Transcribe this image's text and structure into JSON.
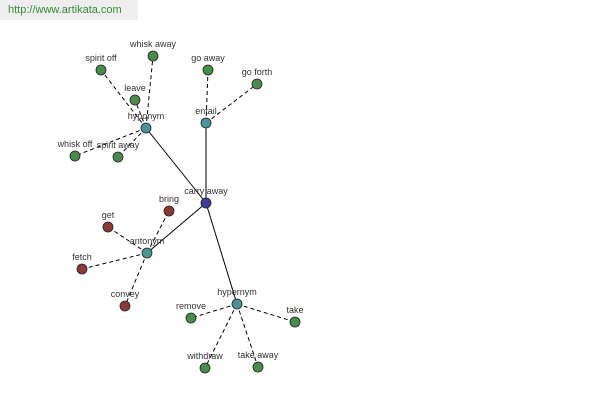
{
  "header": {
    "url": "http://www.artikata.com"
  },
  "nodes": [
    "carry away",
    "hyponym",
    "entail",
    "antonym",
    "hypernym",
    "spirit off",
    "whisk away",
    "leave",
    "whisk off",
    "spirit away",
    "go away",
    "go forth",
    "bring",
    "get",
    "fetch",
    "convey",
    "remove",
    "take",
    "withdraw",
    "take away"
  ]
}
